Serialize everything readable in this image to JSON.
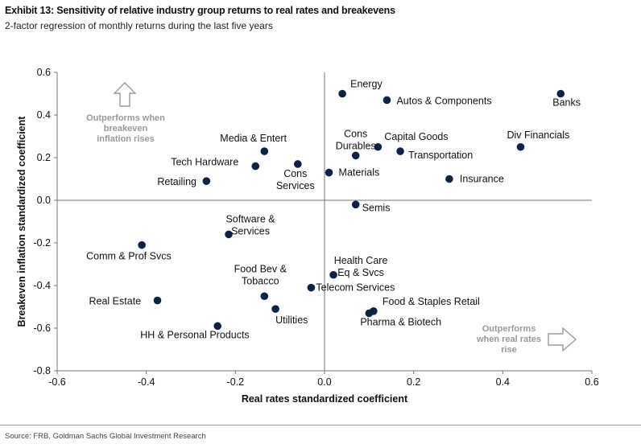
{
  "header": {
    "title": "Exhibit 13: Sensitivity of relative industry group returns to real rates and breakevens",
    "subtitle": "2-factor regression of monthly returns during the last five years"
  },
  "footer": {
    "source": "Source: FRB, Goldman Sachs Global Investment Research"
  },
  "colors": {
    "marker": "#0d2345",
    "axis": "#777777",
    "annotation_text": "#999999",
    "arrow_outline": "#9a9a9a",
    "rule": "#9a9a9a"
  },
  "chart_data": {
    "type": "scatter",
    "xlabel": "Real rates standardized coefficient",
    "ylabel": "Breakeven inflation standardized coefficient",
    "xlim": [
      -0.6,
      0.6
    ],
    "ylim": [
      -0.8,
      0.6
    ],
    "x_ticks": [
      "-0.6",
      "-0.4",
      "-0.2",
      "0.0",
      "0.2",
      "0.4",
      "0.6"
    ],
    "y_ticks": [
      "0.6",
      "0.4",
      "0.2",
      "0.0",
      "-0.2",
      "-0.4",
      "-0.6",
      "-0.8"
    ],
    "grid": false,
    "points": [
      {
        "label": [
          "Energy"
        ],
        "x": 0.04,
        "y": 0.5
      },
      {
        "label": [
          "Autos & Components"
        ],
        "x": 0.14,
        "y": 0.47
      },
      {
        "label": [
          "Banks"
        ],
        "x": 0.53,
        "y": 0.5
      },
      {
        "label": [
          "Cons",
          "Durables"
        ],
        "x": 0.07,
        "y": 0.21
      },
      {
        "label": [
          "Capital Goods"
        ],
        "x": 0.12,
        "y": 0.25
      },
      {
        "label": [
          "Transportation"
        ],
        "x": 0.17,
        "y": 0.23
      },
      {
        "label": [
          "Div Financials"
        ],
        "x": 0.44,
        "y": 0.25
      },
      {
        "label": [
          "Media & Entert"
        ],
        "x": -0.135,
        "y": 0.23
      },
      {
        "label": [
          "Tech Hardware"
        ],
        "x": -0.155,
        "y": 0.16
      },
      {
        "label": [
          "Cons",
          "Services"
        ],
        "x": -0.06,
        "y": 0.17
      },
      {
        "label": [
          "Materials"
        ],
        "x": 0.01,
        "y": 0.13
      },
      {
        "label": [
          "Insurance"
        ],
        "x": 0.28,
        "y": 0.1
      },
      {
        "label": [
          "Retailing"
        ],
        "x": -0.265,
        "y": 0.09
      },
      {
        "label": [
          "Semis"
        ],
        "x": 0.07,
        "y": -0.02
      },
      {
        "label": [
          "Software &",
          "Services"
        ],
        "x": -0.215,
        "y": -0.16
      },
      {
        "label": [
          "Comm & Prof Svcs"
        ],
        "x": -0.41,
        "y": -0.21
      },
      {
        "label": [
          "Health Care",
          "Eq & Svcs"
        ],
        "x": 0.02,
        "y": -0.35
      },
      {
        "label": [
          "Food Bev &",
          "Tobacco"
        ],
        "x": -0.135,
        "y": -0.45
      },
      {
        "label": [
          "Telecom Services"
        ],
        "x": -0.03,
        "y": -0.41
      },
      {
        "label": [
          "Real Estate"
        ],
        "x": -0.375,
        "y": -0.47
      },
      {
        "label": [
          "Utilities"
        ],
        "x": -0.11,
        "y": -0.51
      },
      {
        "label": [
          "Food & Staples Retail"
        ],
        "x": 0.11,
        "y": -0.52
      },
      {
        "label": [
          "Pharma & Biotech"
        ],
        "x": 0.1,
        "y": -0.53
      },
      {
        "label": [
          "HH & Personal Products"
        ],
        "x": -0.24,
        "y": -0.59
      }
    ],
    "annotations": [
      {
        "text": [
          "Outperforms when",
          "breakeven",
          "inflation rises"
        ],
        "arrow": "up"
      },
      {
        "text": [
          "Outperforms",
          "when real rates",
          "rise"
        ],
        "arrow": "right"
      }
    ]
  }
}
